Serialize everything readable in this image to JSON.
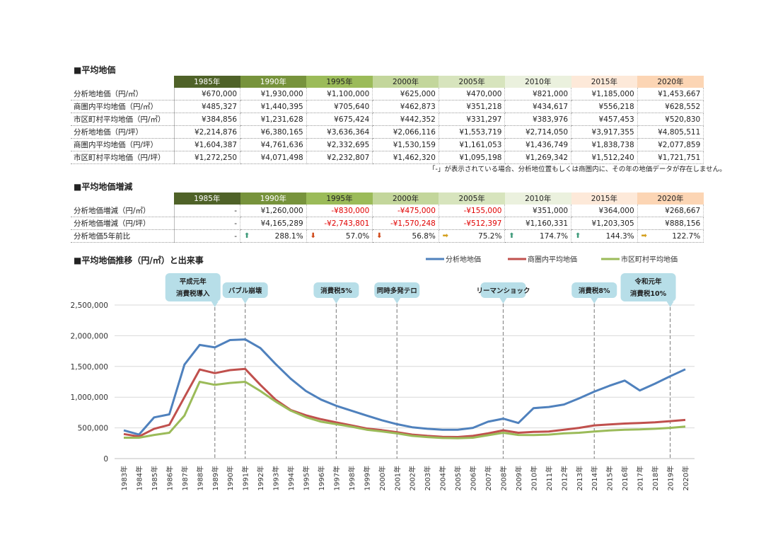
{
  "section1": {
    "title": "■平均地価",
    "years": [
      "1985年",
      "1990年",
      "1995年",
      "2000年",
      "2005年",
      "2010年",
      "2015年",
      "2020年"
    ],
    "rows": [
      {
        "label": "分析地地価（円/㎡）",
        "values": [
          "¥670,000",
          "¥1,930,000",
          "¥1,100,000",
          "¥625,000",
          "¥470,000",
          "¥821,000",
          "¥1,185,000",
          "¥1,453,667"
        ]
      },
      {
        "label": "商圏内平均地価（円/㎡）",
        "values": [
          "¥485,327",
          "¥1,440,395",
          "¥705,640",
          "¥462,873",
          "¥351,218",
          "¥434,617",
          "¥556,218",
          "¥628,552"
        ]
      },
      {
        "label": "市区町村平均地価（円/㎡）",
        "values": [
          "¥384,856",
          "¥1,231,628",
          "¥675,424",
          "¥442,352",
          "¥331,297",
          "¥383,976",
          "¥457,453",
          "¥520,830"
        ]
      },
      {
        "label": "分析地地価（円/坪）",
        "values": [
          "¥2,214,876",
          "¥6,380,165",
          "¥3,636,364",
          "¥2,066,116",
          "¥1,553,719",
          "¥2,714,050",
          "¥3,917,355",
          "¥4,805,511"
        ]
      },
      {
        "label": "商圏内平均地価（円/坪）",
        "values": [
          "¥1,604,387",
          "¥4,761,636",
          "¥2,332,695",
          "¥1,530,159",
          "¥1,161,053",
          "¥1,436,749",
          "¥1,838,738",
          "¥2,077,859"
        ]
      },
      {
        "label": "市区町村平均地価（円/坪）",
        "values": [
          "¥1,272,250",
          "¥4,071,498",
          "¥2,232,807",
          "¥1,462,320",
          "¥1,095,198",
          "¥1,269,342",
          "¥1,512,240",
          "¥1,721,751"
        ]
      }
    ],
    "note": "「-」が表示されている場合、分析地位置もしくは商圏内に、その年の地価データが存在しません。"
  },
  "section2": {
    "title": "■平均地価増減",
    "years": [
      "1985年",
      "1990年",
      "1995年",
      "2000年",
      "2005年",
      "2010年",
      "2015年",
      "2020年"
    ],
    "rows": [
      {
        "label": "分析地価増減（円/㎡）",
        "values": [
          "-",
          "¥1,260,000",
          "-¥830,000",
          "-¥475,000",
          "-¥155,000",
          "¥351,000",
          "¥364,000",
          "¥268,667"
        ]
      },
      {
        "label": "分析地価増減（円/坪）",
        "values": [
          "-",
          "¥4,165,289",
          "-¥2,743,801",
          "-¥1,570,248",
          "-¥512,397",
          "¥1,160,331",
          "¥1,203,305",
          "¥888,156"
        ]
      }
    ],
    "ratio_row": {
      "label": "分析地価5年前比",
      "values": [
        "-",
        "288.1%",
        "57.0%",
        "56.8%",
        "75.2%",
        "174.7%",
        "144.3%",
        "122.7%"
      ],
      "trends": [
        "none",
        "up",
        "down",
        "down",
        "flat",
        "up",
        "up",
        "flat"
      ]
    }
  },
  "header_colors": [
    "#4f6228",
    "#77933c",
    "#9bbb59",
    "#c3d69b",
    "#d7e4bd",
    "#ebf1de",
    "#fde9d9",
    "#fcd5b4"
  ],
  "header_text_colors": [
    "#ffffff",
    "#ffffff",
    "#222222",
    "#222222",
    "#222222",
    "#222222",
    "#222222",
    "#222222"
  ],
  "chart_section_title": "■平均地価推移（円/㎡）と出来事",
  "chart_data": {
    "type": "line",
    "title": "",
    "xlabel": "",
    "ylabel": "",
    "ylim": [
      0,
      2500000
    ],
    "yticks": [
      0,
      500000,
      1000000,
      1500000,
      2000000,
      2500000
    ],
    "ytick_labels": [
      "0",
      "500,000",
      "1,000,000",
      "1,500,000",
      "2,000,000",
      "2,500,000"
    ],
    "grid": true,
    "legend": "top-right",
    "categories": [
      "1983年",
      "1984年",
      "1985年",
      "1986年",
      "1987年",
      "1988年",
      "1989年",
      "1990年",
      "1991年",
      "1992年",
      "1993年",
      "1994年",
      "1995年",
      "1996年",
      "1997年",
      "1998年",
      "1999年",
      "2000年",
      "2001年",
      "2002年",
      "2003年",
      "2004年",
      "2005年",
      "2006年",
      "2007年",
      "2008年",
      "2009年",
      "2010年",
      "2011年",
      "2012年",
      "2013年",
      "2014年",
      "2015年",
      "2016年",
      "2017年",
      "2018年",
      "2019年",
      "2020年"
    ],
    "series": [
      {
        "name": "分析地地価",
        "color": "#4f81bd",
        "values": [
          460000,
          390000,
          670000,
          720000,
          1530000,
          1850000,
          1810000,
          1930000,
          1940000,
          1800000,
          1540000,
          1300000,
          1100000,
          960000,
          860000,
          780000,
          700000,
          625000,
          560000,
          510000,
          485000,
          470000,
          470000,
          500000,
          600000,
          650000,
          580000,
          821000,
          840000,
          880000,
          980000,
          1090000,
          1185000,
          1270000,
          1110000,
          1220000,
          1340000,
          1453667
        ]
      },
      {
        "name": "商圏内平均地価",
        "color": "#c0504d",
        "values": [
          400000,
          360000,
          485327,
          550000,
          1000000,
          1450000,
          1390000,
          1440395,
          1460000,
          1200000,
          960000,
          790000,
          705640,
          640000,
          590000,
          540000,
          490000,
          462873,
          430000,
          390000,
          370000,
          355000,
          351218,
          370000,
          410000,
          460000,
          420000,
          434617,
          440000,
          470000,
          500000,
          540000,
          556218,
          570000,
          580000,
          590000,
          610000,
          628552
        ]
      },
      {
        "name": "市区町村平均地価",
        "color": "#9bbb59",
        "values": [
          340000,
          340000,
          384856,
          420000,
          700000,
          1250000,
          1200000,
          1231628,
          1250000,
          1100000,
          930000,
          780000,
          675424,
          600000,
          560000,
          520000,
          470000,
          442352,
          410000,
          370000,
          350000,
          335000,
          331297,
          340000,
          380000,
          420000,
          385000,
          383976,
          390000,
          410000,
          420000,
          440000,
          457453,
          470000,
          475000,
          485000,
          500000,
          520830
        ]
      }
    ],
    "events": [
      {
        "year": "1989年",
        "lines": [
          "平成元年",
          "消費税導入"
        ]
      },
      {
        "year": "1991年",
        "lines": [
          "バブル崩壊"
        ]
      },
      {
        "year": "1997年",
        "lines": [
          "消費税5%"
        ]
      },
      {
        "year": "2001年",
        "lines": [
          "同時多発テロ"
        ]
      },
      {
        "year": "2008年",
        "lines": [
          "リーマンショック"
        ]
      },
      {
        "year": "2014年",
        "lines": [
          "消費税8%"
        ]
      },
      {
        "year": "2019年",
        "lines": [
          "令和元年",
          "消費税10%"
        ]
      }
    ]
  }
}
